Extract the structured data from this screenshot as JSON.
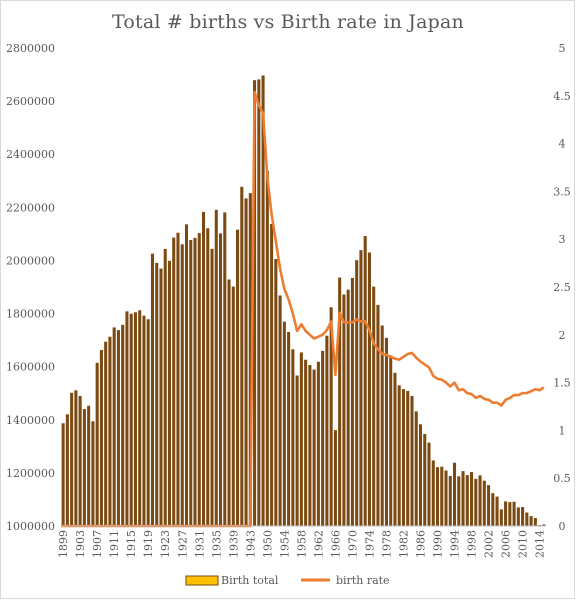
{
  "chart_data": {
    "type": "bar",
    "title": "Total # births vs Birth rate in Japan",
    "xlabel": "",
    "ylabel": "",
    "ylim": [
      1000000,
      2800000
    ],
    "y2lim": [
      0,
      5
    ],
    "y_ticks": [
      "1000000",
      "1200000",
      "1400000",
      "1600000",
      "1800000",
      "2000000",
      "2200000",
      "2400000",
      "2600000",
      "2800000"
    ],
    "y2_ticks": [
      "0",
      "0.5",
      "1",
      "1.5",
      "2",
      "2.5",
      "3",
      "3.5",
      "4",
      "4.5",
      "5"
    ],
    "legend_position": "bottom",
    "grid": false,
    "categories": [
      "1899",
      "1900",
      "1901",
      "1902",
      "1903",
      "1904",
      "1905",
      "1906",
      "1907",
      "1908",
      "1909",
      "1910",
      "1911",
      "1912",
      "1913",
      "1914",
      "1915",
      "1916",
      "1917",
      "1918",
      "1919",
      "1920",
      "1921",
      "1922",
      "1923",
      "1924",
      "1925",
      "1926",
      "1927",
      "1928",
      "1929",
      "1930",
      "1931",
      "1932",
      "1933",
      "1934",
      "1935",
      "1936",
      "1937",
      "1938",
      "1939",
      "1940",
      "1941",
      "1942",
      "1943",
      "1947",
      "1948",
      "1949",
      "1950",
      "1951",
      "1952",
      "1953",
      "1954",
      "1955",
      "1956",
      "1957",
      "1958",
      "1959",
      "1960",
      "1961",
      "1962",
      "1963",
      "1964",
      "1965",
      "1966",
      "1967",
      "1968",
      "1969",
      "1970",
      "1971",
      "1972",
      "1973",
      "1974",
      "1975",
      "1976",
      "1977",
      "1978",
      "1979",
      "1980",
      "1981",
      "1982",
      "1983",
      "1984",
      "1985",
      "1986",
      "1987",
      "1988",
      "1989",
      "1990",
      "1991",
      "1992",
      "1993",
      "1994",
      "1995",
      "1996",
      "1997",
      "1998",
      "1999",
      "2000",
      "2001",
      "2002",
      "2003",
      "2004",
      "2005",
      "2006",
      "2007",
      "2008",
      "2009",
      "2010",
      "2011",
      "2012",
      "2013",
      "2014",
      "2015"
    ],
    "x_tick_labels": [
      "1899",
      "1903",
      "1907",
      "1911",
      "1915",
      "1919",
      "1923",
      "1927",
      "1931",
      "1935",
      "1939",
      "1943",
      "1950",
      "1954",
      "1958",
      "1962",
      "1966",
      "1970",
      "1974",
      "1978",
      "1982",
      "1986",
      "1990",
      "1994",
      "1998",
      "2002",
      "2006",
      "2010",
      "2014"
    ],
    "series": [
      {
        "name": "Birth total",
        "color": "#7a4a12",
        "values": [
          1386981,
          1420534,
          1501591,
          1510835,
          1489816,
          1440371,
          1452770,
          1394295,
          1614472,
          1662815,
          1693850,
          1712857,
          1747803,
          1737674,
          1757441,
          1808402,
          1799326,
          1804822,
          1812413,
          1791992,
          1778685,
          2025564,
          1990876,
          1969314,
          2043297,
          1998520,
          2086091,
          2104405,
          2060737,
          2135852,
          2077026,
          2085101,
          2102784,
          2182742,
          2121253,
          2043783,
          2190704,
          2101969,
          2180734,
          1928321,
          1901573,
          2115867,
          2277283,
          2233660,
          2253535,
          2678792,
          2681624,
          2696638,
          2337507,
          2137689,
          2005162,
          1868040,
          1769580,
          1730692,
          1665278,
          1566713,
          1653469,
          1626088,
          1606041,
          1589372,
          1618616,
          1659521,
          1716761,
          1823697,
          1360974,
          1935647,
          1871839,
          1889815,
          1934239,
          2000973,
          2038682,
          2091983,
          2029989,
          1901440,
          1832617,
          1755100,
          1708643,
          1642580,
          1576889,
          1529455,
          1515392,
          1508687,
          1489780,
          1431577,
          1382946,
          1346658,
          1314006,
          1246802,
          1221585,
          1223245,
          1208989,
          1188282,
          1238328,
          1187064,
          1206555,
          1191665,
          1203147,
          1177669,
          1190547,
          1170662,
          1153855,
          1123610,
          1110721,
          1062530,
          1092674,
          1089818,
          1091156,
          1070035,
          1071304,
          1050806,
          1037231,
          1029816,
          1003539,
          1005677
        ]
      },
      {
        "name": "birth rate",
        "color": "#ed7d31",
        "values": [
          null,
          null,
          null,
          null,
          null,
          null,
          null,
          null,
          null,
          null,
          null,
          null,
          null,
          null,
          null,
          null,
          null,
          null,
          null,
          null,
          null,
          null,
          null,
          null,
          null,
          null,
          null,
          null,
          null,
          null,
          null,
          null,
          null,
          null,
          null,
          null,
          null,
          null,
          null,
          null,
          null,
          null,
          null,
          null,
          null,
          4.54,
          4.4,
          4.32,
          3.65,
          3.26,
          2.98,
          2.69,
          2.48,
          2.37,
          2.22,
          2.04,
          2.11,
          2.04,
          2.0,
          1.96,
          1.98,
          2.0,
          2.05,
          2.14,
          1.58,
          2.23,
          2.13,
          2.13,
          2.13,
          2.16,
          2.14,
          2.14,
          2.05,
          1.91,
          1.85,
          1.8,
          1.79,
          1.77,
          1.75,
          1.74,
          1.77,
          1.8,
          1.81,
          1.76,
          1.72,
          1.69,
          1.66,
          1.57,
          1.54,
          1.53,
          1.5,
          1.46,
          1.5,
          1.42,
          1.43,
          1.39,
          1.38,
          1.34,
          1.36,
          1.33,
          1.32,
          1.29,
          1.29,
          1.26,
          1.32,
          1.34,
          1.37,
          1.37,
          1.39,
          1.39,
          1.41,
          1.43,
          1.42,
          1.45
        ]
      }
    ]
  }
}
